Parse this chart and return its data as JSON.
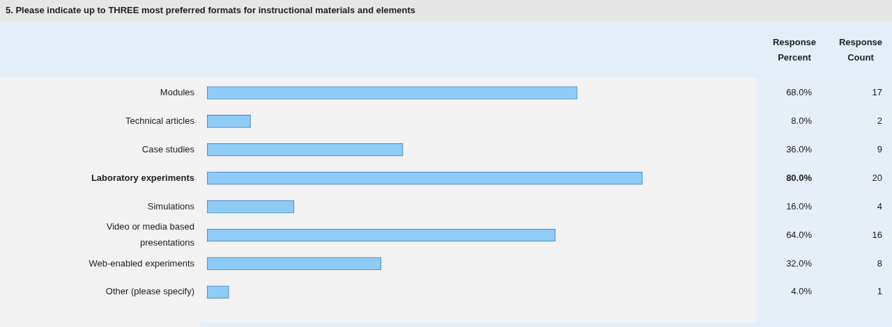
{
  "chart_data": {
    "type": "bar",
    "orientation": "horizontal",
    "title": "5. Please indicate up to THREE most preferred formats for instructional materials and elements",
    "categories": [
      "Modules",
      "Technical articles",
      "Case studies",
      "Laboratory experiments",
      "Simulations",
      "Video or media based presentations",
      "Web-enabled experiments",
      "Other (please specify)"
    ],
    "values": [
      68,
      8,
      36,
      80,
      16,
      64,
      32,
      4
    ],
    "value_labels": [
      "68.0%",
      "8.0%",
      "36.0%",
      "80.0%",
      "16.0%",
      "64.0%",
      "32.0%",
      "4.0%"
    ],
    "color": "#8ecbf5",
    "tick_labels": "y",
    "grid": false,
    "legend": false,
    "annotations": [
      "Response Percent",
      "Response Count",
      "17",
      "2",
      "9",
      "20",
      "4",
      "16",
      "8",
      "1"
    ]
  }
}
